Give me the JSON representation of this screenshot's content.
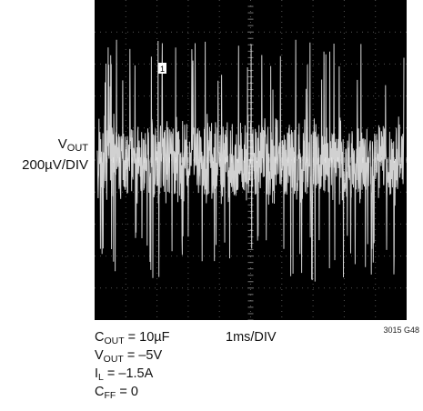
{
  "chart_data": {
    "type": "line",
    "trace_label": "V",
    "trace_label_sub": "OUT",
    "vertical_scale": "200µV/DIV",
    "horizontal_scale": "1ms/DIV",
    "figure_code": "3015 G48",
    "marker_label": "1",
    "grid": true,
    "divisions": {
      "x": 10,
      "y": 10
    },
    "ylim": [
      -1000,
      1000
    ],
    "xlim": [
      0,
      10
    ],
    "trace_color": "#ffffff",
    "background_color": "#000000",
    "noise": {
      "x_unit": "ms",
      "y_unit": "µV",
      "typical_envelope_uv": 300,
      "peak_uv": 760,
      "center_uv": 0
    },
    "conditions": [
      {
        "base": "C",
        "sub": "OUT",
        "rest": " = 10µF"
      },
      {
        "base": "V",
        "sub": "OUT",
        "rest": " = –5V"
      },
      {
        "base": "I",
        "sub": "L",
        "rest": " = –1.5A"
      },
      {
        "base": "C",
        "sub": "FF",
        "rest": " = 0"
      }
    ]
  }
}
